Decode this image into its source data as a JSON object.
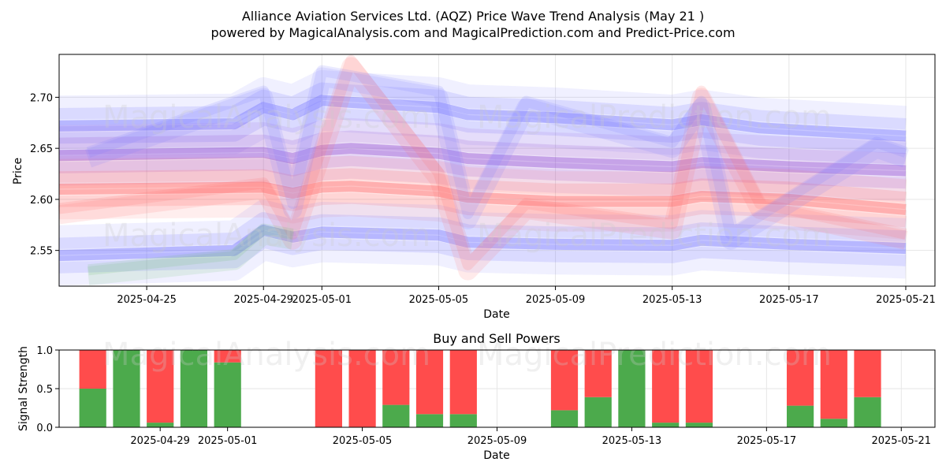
{
  "title": {
    "line1": "Alliance Aviation Services Ltd. (AQZ) Price Wave Trend Analysis (May 21 )",
    "line2": "powered by MagicalAnalysis.com and MagicalPrediction.com and Predict-Price.com"
  },
  "watermarks": {
    "left": "MagicalAnalysis.com",
    "right": "MagicalPrediction.com"
  },
  "chart_data": [
    {
      "type": "line",
      "title": "",
      "xlabel": "Date",
      "ylabel": "Price",
      "xlim": [
        "2025-04-22",
        "2025-05-22"
      ],
      "ylim": [
        2.515,
        2.742
      ],
      "x_ticks": [
        "2025-04-25",
        "2025-04-29",
        "2025-05-01",
        "2025-05-05",
        "2025-05-09",
        "2025-05-13",
        "2025-05-17",
        "2025-05-21"
      ],
      "y_ticks": [
        "2.55",
        "2.60",
        "2.65",
        "2.70"
      ],
      "grid": true,
      "series": [
        {
          "name": "upper-wave-blue",
          "color": "#6a6aff",
          "x": [
            "2025-04-22",
            "2025-04-28",
            "2025-04-29",
            "2025-04-30",
            "2025-05-01",
            "2025-05-02",
            "2025-05-05",
            "2025-05-06",
            "2025-05-09",
            "2025-05-13",
            "2025-05-14",
            "2025-05-16",
            "2025-05-21"
          ],
          "values": [
            2.672,
            2.674,
            2.69,
            2.683,
            2.697,
            2.695,
            2.69,
            2.683,
            2.68,
            2.673,
            2.678,
            2.67,
            2.662
          ]
        },
        {
          "name": "mid-wave-purple",
          "color": "#8a3fd0",
          "x": [
            "2025-04-22",
            "2025-04-29",
            "2025-04-30",
            "2025-05-01",
            "2025-05-02",
            "2025-05-05",
            "2025-05-06",
            "2025-05-09",
            "2025-05-13",
            "2025-05-14",
            "2025-05-17",
            "2025-05-21"
          ],
          "values": [
            2.643,
            2.646,
            2.64,
            2.648,
            2.65,
            2.645,
            2.64,
            2.636,
            2.632,
            2.636,
            2.632,
            2.628
          ]
        },
        {
          "name": "center-wave-red",
          "color": "#ff5a5a",
          "x": [
            "2025-04-22",
            "2025-04-29",
            "2025-04-30",
            "2025-05-01",
            "2025-05-02",
            "2025-05-05",
            "2025-05-06",
            "2025-05-09",
            "2025-05-13",
            "2025-05-14",
            "2025-05-17",
            "2025-05-21"
          ],
          "values": [
            2.61,
            2.612,
            2.606,
            2.612,
            2.613,
            2.608,
            2.602,
            2.598,
            2.598,
            2.603,
            2.6,
            2.59
          ]
        },
        {
          "name": "lower-wave-blue",
          "color": "#6a6aff",
          "x": [
            "2025-04-22",
            "2025-04-28",
            "2025-04-29",
            "2025-04-30",
            "2025-05-01",
            "2025-05-05",
            "2025-05-06",
            "2025-05-09",
            "2025-05-13",
            "2025-05-14",
            "2025-05-17",
            "2025-05-21"
          ],
          "values": [
            2.545,
            2.55,
            2.57,
            2.563,
            2.568,
            2.565,
            2.558,
            2.556,
            2.555,
            2.56,
            2.556,
            2.552
          ]
        },
        {
          "name": "oscillation-red",
          "color": "#ff6a6a",
          "x": [
            "2025-04-22",
            "2025-04-29",
            "2025-04-30",
            "2025-05-02",
            "2025-05-05",
            "2025-05-06",
            "2025-05-08",
            "2025-05-13",
            "2025-05-14",
            "2025-05-16",
            "2025-05-21"
          ],
          "values": [
            2.585,
            2.61,
            2.56,
            2.73,
            2.62,
            2.53,
            2.59,
            2.57,
            2.7,
            2.59,
            2.56
          ]
        },
        {
          "name": "oscillation-blue",
          "color": "#7a7aff",
          "x": [
            "2025-04-23",
            "2025-04-29",
            "2025-04-30",
            "2025-05-01",
            "2025-05-05",
            "2025-05-06",
            "2025-05-08",
            "2025-05-13",
            "2025-05-14",
            "2025-05-15",
            "2025-05-20",
            "2025-05-21"
          ],
          "values": [
            2.64,
            2.7,
            2.59,
            2.72,
            2.7,
            2.58,
            2.69,
            2.65,
            2.69,
            2.56,
            2.65,
            2.64
          ]
        },
        {
          "name": "lower-green",
          "color": "#6abf6a",
          "x": [
            "2025-04-23",
            "2025-04-28",
            "2025-04-29",
            "2025-04-30"
          ],
          "values": [
            2.525,
            2.54,
            2.565,
            2.56
          ]
        }
      ]
    },
    {
      "type": "bar",
      "stacked": true,
      "title": "Buy and Sell Powers",
      "xlabel": "Date",
      "ylabel": "Signal Strength",
      "xlim": [
        "2025-04-26",
        "2025-05-22"
      ],
      "ylim": [
        0,
        1.0
      ],
      "x_ticks": [
        "2025-04-29",
        "2025-05-01",
        "2025-05-05",
        "2025-05-09",
        "2025-05-13",
        "2025-05-17",
        "2025-05-21"
      ],
      "y_ticks": [
        "0.0",
        "0.5",
        "1.0"
      ],
      "categories": [
        "2025-04-27",
        "2025-04-28",
        "2025-04-29",
        "2025-04-30",
        "2025-05-01",
        "2025-05-04",
        "2025-05-05",
        "2025-05-06",
        "2025-05-07",
        "2025-05-08",
        "2025-05-11",
        "2025-05-12",
        "2025-05-13",
        "2025-05-14",
        "2025-05-15",
        "2025-05-18",
        "2025-05-19",
        "2025-05-20"
      ],
      "series": [
        {
          "name": "Buy",
          "color": "#4caa4c",
          "values": [
            0.5,
            1.0,
            0.06,
            1.0,
            0.84,
            0.0,
            0.0,
            0.29,
            0.17,
            0.17,
            0.22,
            0.39,
            1.0,
            0.06,
            0.06,
            0.28,
            0.11,
            0.39
          ]
        },
        {
          "name": "Sell",
          "color": "#ff4c4c",
          "values": [
            0.5,
            0.0,
            0.94,
            0.0,
            0.16,
            1.0,
            1.0,
            0.71,
            0.83,
            0.83,
            0.78,
            0.61,
            0.0,
            0.94,
            0.94,
            0.72,
            0.89,
            0.61
          ]
        }
      ]
    }
  ]
}
